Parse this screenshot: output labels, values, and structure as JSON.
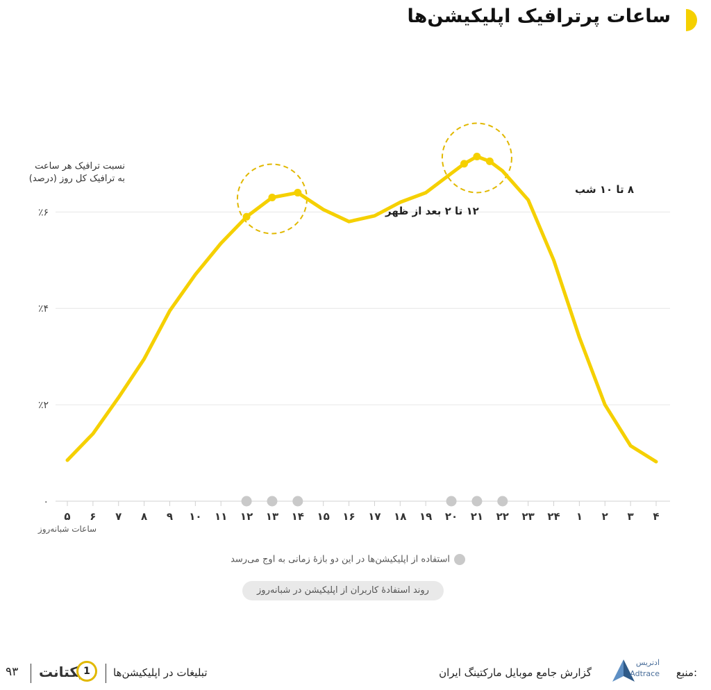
{
  "header": {
    "title": "ساعات پرترافیک اپلیکیشن‌ها"
  },
  "chart_data": {
    "type": "line",
    "ylabel": "نسبت ترافیک هر ساعت به ترافیک کل روز (درصد)",
    "ylabel_lines": [
      "نسبت ترافیک هر ساعت",
      "به ترافیک کل روز (درصد)"
    ],
    "xlabel": "ساعات شبانه‌روز",
    "categories": [
      "۵",
      "۶",
      "۷",
      "۸",
      "۹",
      "۱۰",
      "۱۱",
      "۱۲",
      "۱۳",
      "۱۴",
      "۱۵",
      "۱۶",
      "۱۷",
      "۱۸",
      "۱۹",
      "۲۰",
      "۲۱",
      "۲۲",
      "۲۳",
      "۲۴",
      "۱",
      "۲",
      "۳",
      "۴"
    ],
    "x": [
      5,
      6,
      7,
      8,
      9,
      10,
      11,
      12,
      13,
      14,
      15,
      16,
      17,
      18,
      19,
      20,
      20.5,
      21,
      21.5,
      22,
      23,
      24,
      1,
      2,
      3,
      4
    ],
    "y": [
      0.85,
      1.4,
      2.15,
      2.95,
      3.95,
      4.7,
      5.35,
      5.9,
      6.3,
      6.4,
      6.05,
      5.8,
      5.92,
      6.2,
      6.4,
      6.8,
      7.0,
      7.15,
      7.05,
      6.85,
      6.25,
      5.0,
      3.4,
      2.0,
      1.15,
      0.82
    ],
    "peak_markers_x": [
      12,
      13,
      14,
      20.5,
      21,
      21.5
    ],
    "ylim": [
      0,
      7.2
    ],
    "yticks": [
      0,
      2,
      4,
      6
    ],
    "ytick_labels": [
      "۰",
      "٪۲",
      "٪۴",
      "٪۶"
    ],
    "grid": true,
    "series_color": "#f5d000",
    "annotations": [
      {
        "text": "۱۲ تا ۲ بعد از ظهر",
        "x": 13,
        "y": 6.3
      },
      {
        "text": "۸ تا ۱۰ شب",
        "x": 21,
        "y": 7.15
      }
    ],
    "peak_hours_axis": [
      12,
      13,
      14,
      20,
      21,
      22
    ]
  },
  "legend": {
    "peak_text": "استفاده از اپلیکیشن‌ها در این دو بازهٔ زمانی به اوج می‌رسد",
    "caption": "روند استفادهٔ کاربران از اپلیکیشن در شبانه‌روز"
  },
  "footer": {
    "source_label": "منبع:",
    "brand_fa": "ادتریس",
    "brand_en": "Adtrace",
    "report_title": "گزارش جامع موبایل مارکتینگ ایران",
    "chapter_title": "تبلیغات در اپلیکیشن‌ها",
    "chapter_number": "1",
    "logo_text": "یکتانت",
    "page_number": "۹۳"
  },
  "colors": {
    "accent": "#f5d000",
    "grid": "#e6e6e6",
    "marker_gray": "#c9c9c9"
  }
}
